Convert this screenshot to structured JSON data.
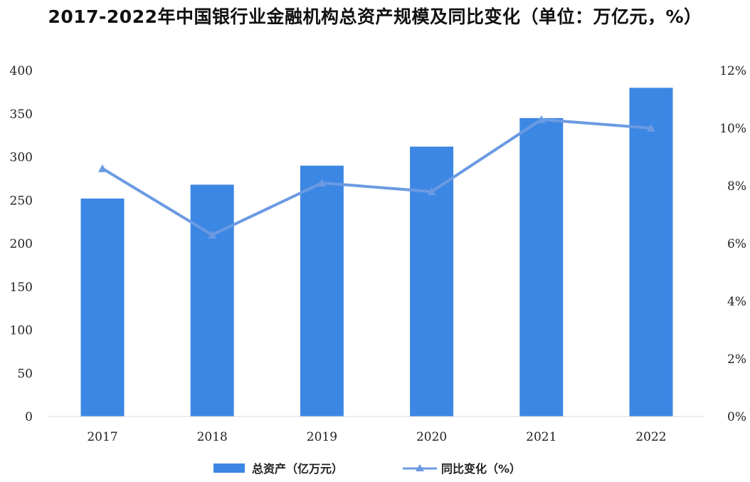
{
  "chart_data": {
    "type": "bar+line",
    "title": "2017-2022年中国银行业金融机构总资产规模及同比变化（单位：万亿元，%）",
    "categories": [
      "2017",
      "2018",
      "2019",
      "2020",
      "2021",
      "2022"
    ],
    "series": [
      {
        "name": "总资产（亿万元）",
        "type": "bar",
        "axis": "left",
        "color": "#3d87e4",
        "values": [
          252,
          268,
          290,
          312,
          345,
          380
        ]
      },
      {
        "name": "同比变化（%）",
        "type": "line",
        "axis": "right",
        "color": "#6b9ae2",
        "marker": "triangle",
        "values": [
          8.6,
          6.3,
          8.1,
          7.8,
          10.3,
          10.0
        ]
      }
    ],
    "y_left": {
      "min": 0,
      "max": 400,
      "ticks": [
        0,
        50,
        100,
        150,
        200,
        250,
        300,
        350,
        400
      ]
    },
    "y_right": {
      "min": 0,
      "max": 12,
      "ticks": [
        "0%",
        "2%",
        "4%",
        "6%",
        "8%",
        "10%",
        "12%"
      ]
    },
    "grid": false,
    "legend": "bottom"
  }
}
